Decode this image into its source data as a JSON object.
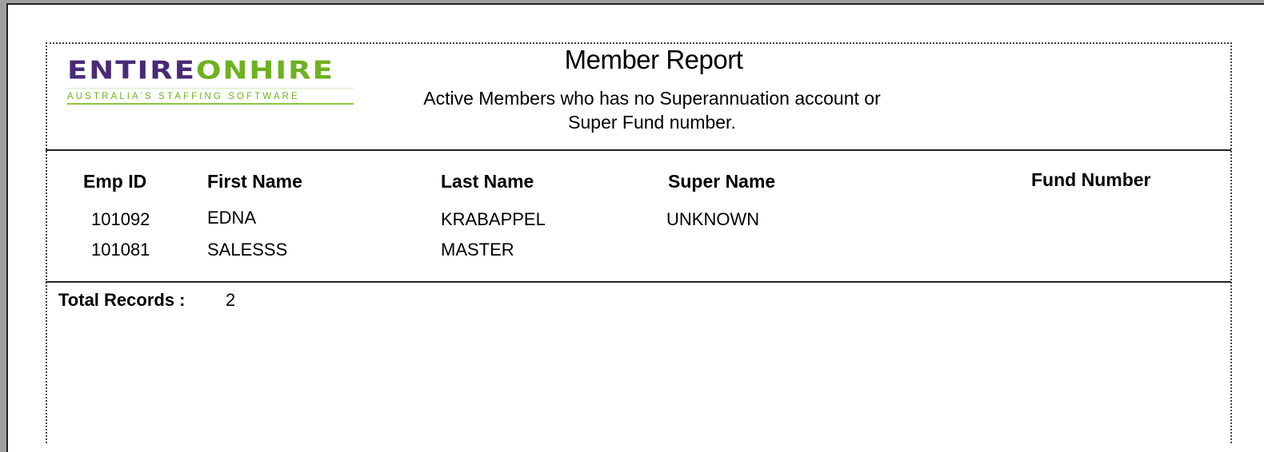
{
  "logo": {
    "part1": "ENTIRE",
    "part2": "ONHIRE",
    "tagline": "AUSTRALIA'S STAFFING SOFTWARE",
    "colors": {
      "purple": "#4a2a76",
      "green": "#6db21f"
    }
  },
  "report": {
    "title": "Member Report",
    "subtitle_line1": "Active Members who has no Superannuation account or",
    "subtitle_line2": "Super Fund number."
  },
  "table": {
    "headers": [
      "Emp ID",
      "First Name",
      "Last Name",
      "Super Name",
      "Fund Number"
    ],
    "rows": [
      [
        "101092",
        "EDNA",
        "KRABAPPEL",
        "UNKNOWN",
        ""
      ],
      [
        "101081",
        "SALESSS",
        "MASTER",
        "",
        ""
      ]
    ]
  },
  "footer": {
    "total_label": "Total Records :",
    "total_value": "2"
  }
}
